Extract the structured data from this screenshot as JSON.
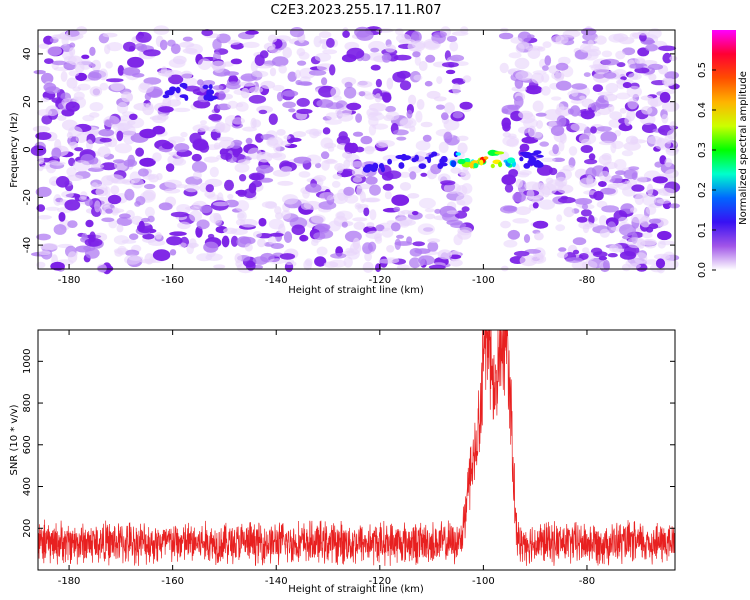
{
  "title": "C2E3.2023.255.17.11.R07",
  "chart_data": [
    {
      "type": "heatmap",
      "xlabel": "Height of straight line (km)",
      "ylabel": "Frequency (Hz)",
      "xlim": [
        -186,
        -63
      ],
      "ylim": [
        -50,
        50
      ],
      "x_ticks": [
        -180,
        -160,
        -140,
        -120,
        -100,
        -80
      ],
      "y_ticks": [
        -40,
        -20,
        0,
        20,
        40
      ],
      "colorbar": {
        "label": "Normalized spectral amplitude",
        "range": [
          0.0,
          0.6
        ],
        "ticks": [
          "0.0",
          "0.1",
          "0.2",
          "0.3",
          "0.4",
          "0.5"
        ],
        "colormap": [
          "#ffffff",
          "#8a2be2",
          "#0000ff",
          "#00ffff",
          "#00ff00",
          "#ffff00",
          "#ff8000",
          "#ff0000",
          "#ff00ff"
        ]
      },
      "features": {
        "blank_band_km": [
          -103,
          -96
        ],
        "strong_echo_center": {
          "x": -100,
          "y": -4,
          "peak": 0.55
        },
        "secondary_echo": {
          "x": -117,
          "y": -6,
          "peak": 0.15
        },
        "small_feature": {
          "x": -157,
          "y": 24,
          "peak": 0.12
        }
      }
    },
    {
      "type": "line",
      "xlabel": "Height of straight line (km)",
      "ylabel": "SNR (10 * v/v)",
      "xlim": [
        -186,
        -63
      ],
      "ylim": [
        0,
        1150
      ],
      "x_ticks": [
        -180,
        -160,
        -140,
        -120,
        -100,
        -80
      ],
      "y_ticks": [
        200,
        400,
        600,
        800,
        1000
      ],
      "series": [
        {
          "color": "#e82020",
          "baseline": 130,
          "noise_amplitude": 120,
          "peaks": [
            {
              "x": -102,
              "y": 520
            },
            {
              "x": -100,
              "y": 740
            },
            {
              "x": -99,
              "y": 960
            },
            {
              "x": -97,
              "y": 880
            },
            {
              "x": -95.5,
              "y": 1150
            }
          ]
        }
      ]
    }
  ]
}
